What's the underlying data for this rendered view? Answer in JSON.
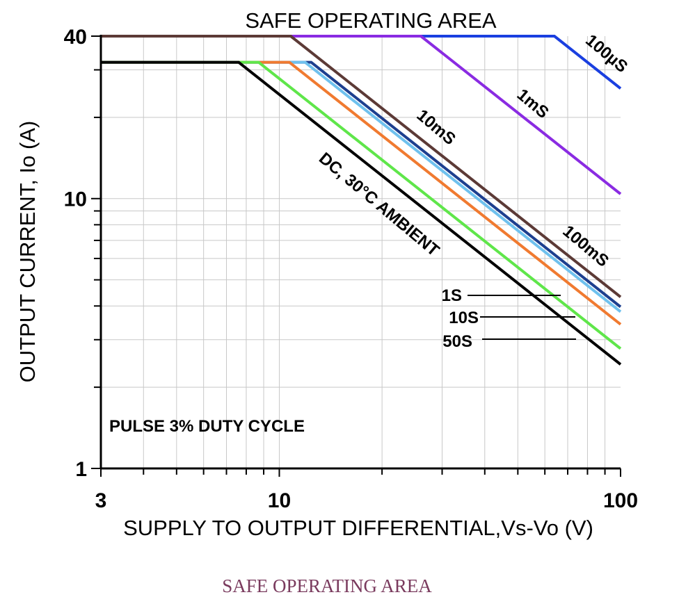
{
  "chart_data": {
    "type": "line",
    "title": "SAFE OPERATING AREA",
    "xlabel": "SUPPLY TO OUTPUT DIFFERENTIAL,Vs-Vo (V)",
    "ylabel": "OUTPUT CURRENT, Io (A)",
    "x_scale": "log",
    "y_scale": "log",
    "xlim": [
      3,
      100
    ],
    "ylim": [
      1,
      40
    ],
    "x_ticks": [
      "3",
      "10",
      "100"
    ],
    "y_ticks": [
      "1",
      "10",
      "40"
    ],
    "grid": true,
    "note": "PULSE 3% DUTY CYCLE",
    "series": [
      {
        "name": "100µS",
        "color": "#1a3fe0",
        "x": [
          3,
          64,
          100
        ],
        "y": [
          40,
          40,
          25.6
        ]
      },
      {
        "name": "1mS",
        "color": "#8a2be2",
        "x": [
          3,
          26,
          100
        ],
        "y": [
          40,
          40,
          10.4
        ]
      },
      {
        "name": "10mS",
        "color": "#5c3a36",
        "x": [
          3,
          10.8,
          100
        ],
        "y": [
          40,
          40,
          4.32
        ]
      },
      {
        "name": "100mS",
        "color": "#1d3f8f",
        "x": [
          3,
          12.4,
          100
        ],
        "y": [
          32,
          32,
          3.97
        ]
      },
      {
        "name": "1S",
        "color": "#6fc1ee",
        "x": [
          3,
          11.9,
          100
        ],
        "y": [
          32,
          32,
          3.81
        ]
      },
      {
        "name": "10S",
        "color": "#f07a30",
        "x": [
          3,
          10.7,
          100
        ],
        "y": [
          32,
          32,
          3.42
        ]
      },
      {
        "name": "50S",
        "color": "#5fe64a",
        "x": [
          3,
          8.7,
          100
        ],
        "y": [
          32,
          32,
          2.78
        ]
      },
      {
        "name": "DC, 30°C AMBIENT",
        "color": "#000000",
        "x": [
          3,
          7.6,
          100
        ],
        "y": [
          32,
          32,
          2.43
        ]
      }
    ]
  },
  "caption": "SAFE OPERATING AREA"
}
